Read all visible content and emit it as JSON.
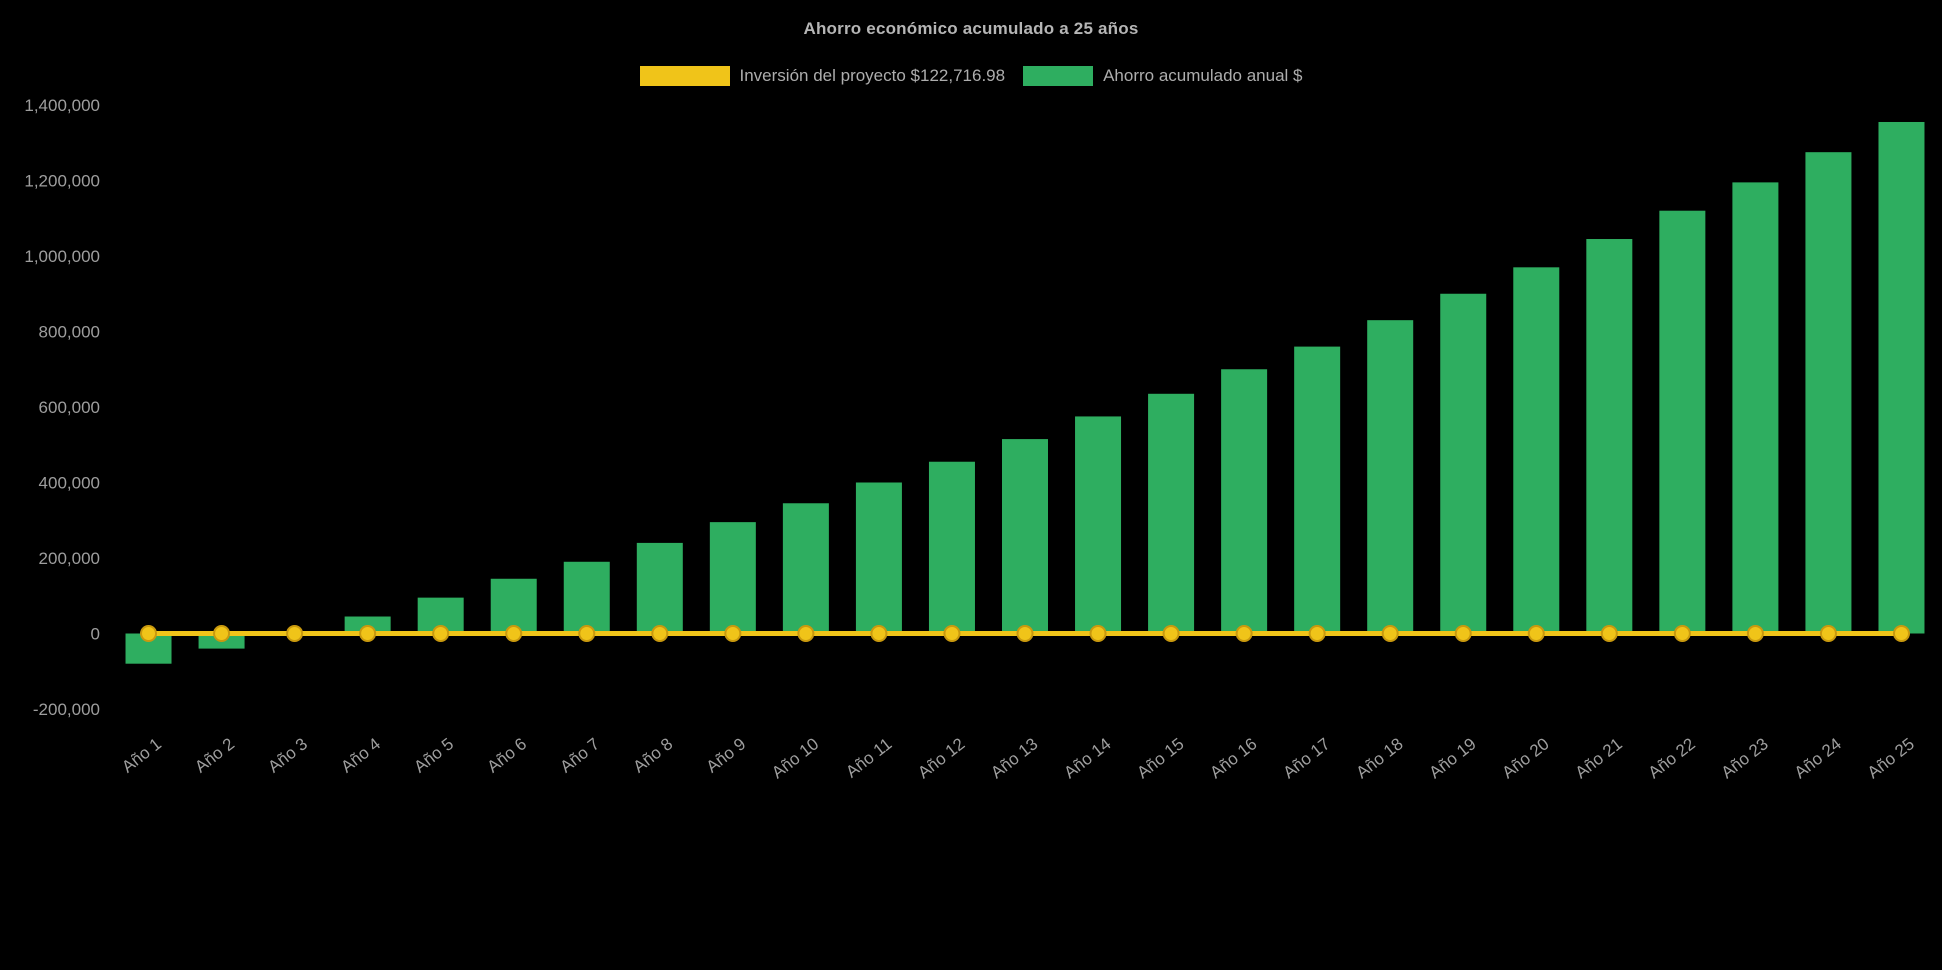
{
  "title": "Ahorro económico acumulado a 25 años",
  "colors": {
    "background": "#000000",
    "investment_line": "#F0C419",
    "investment_marker_stroke": "#C9990E",
    "savings_bar": "#2EAE60",
    "text": "#ADADAD",
    "tick_text": "#9E9E9E"
  },
  "chart_data": {
    "type": "bar",
    "title": "Ahorro económico acumulado a 25 años",
    "categories": [
      "Año 1",
      "Año 2",
      "Año 3",
      "Año 4",
      "Año 5",
      "Año 6",
      "Año 7",
      "Año 8",
      "Año 9",
      "Año 10",
      "Año 11",
      "Año 12",
      "Año 13",
      "Año 14",
      "Año 15",
      "Año 16",
      "Año 17",
      "Año 18",
      "Año 19",
      "Año 20",
      "Año 21",
      "Año 22",
      "Año 23",
      "Año 24",
      "Año 25"
    ],
    "series": [
      {
        "name": "Inversión del proyecto $122,716.98",
        "type": "line",
        "color": "#F0C419",
        "values": [
          0,
          0,
          0,
          0,
          0,
          0,
          0,
          0,
          0,
          0,
          0,
          0,
          0,
          0,
          0,
          0,
          0,
          0,
          0,
          0,
          0,
          0,
          0,
          0,
          0
        ]
      },
      {
        "name": "Ahorro acumulado anual $",
        "type": "bar",
        "color": "#2EAE60",
        "values": [
          -80000,
          -40000,
          2000,
          45000,
          95000,
          145000,
          190000,
          240000,
          295000,
          345000,
          400000,
          455000,
          515000,
          575000,
          635000,
          700000,
          760000,
          830000,
          900000,
          970000,
          1045000,
          1120000,
          1195000,
          1275000,
          1355000
        ]
      }
    ],
    "investment_value_shown_in_legend": "122,716.98",
    "xlabel": "",
    "ylabel": "",
    "ylim": [
      -200000,
      1400000
    ],
    "yticks": [
      1400000,
      1200000,
      1000000,
      800000,
      600000,
      400000,
      200000,
      0,
      -200000
    ],
    "grid": false,
    "legend_position": "top"
  }
}
